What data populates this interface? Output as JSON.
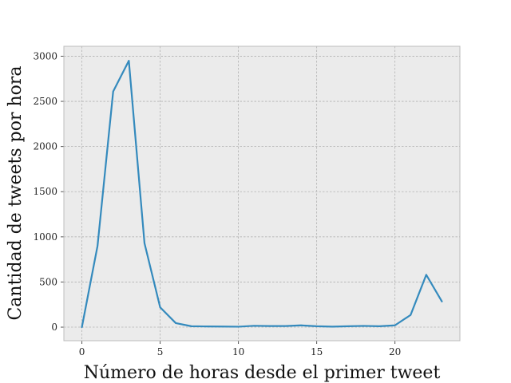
{
  "chart_data": {
    "type": "line",
    "title": "",
    "xlabel": "Número de horas desde el primer tweet",
    "ylabel": "Cantidad de tweets por hora",
    "xlim": [
      -1.15,
      24.15
    ],
    "ylim": [
      -150,
      3110
    ],
    "x_ticks": [
      0,
      5,
      10,
      15,
      20
    ],
    "y_ticks": [
      0,
      500,
      1000,
      1500,
      2000,
      2500,
      3000
    ],
    "x_tick_labels": [
      "0",
      "5",
      "10",
      "15",
      "20"
    ],
    "y_tick_labels": [
      "0",
      "500",
      "1000",
      "1500",
      "2000",
      "2500",
      "3000"
    ],
    "grid": true,
    "legend": "none",
    "colors": {
      "background": "#ebebeb",
      "grid": "#b2b2b2",
      "line": "#348abd",
      "frame": "#bcbcbc"
    },
    "series": [
      {
        "x": [
          0,
          1,
          2,
          3,
          4,
          5,
          6,
          7,
          8,
          9,
          10,
          11,
          12,
          13,
          14,
          15,
          16,
          17,
          18,
          19,
          20,
          21,
          22,
          23
        ],
        "values": [
          0,
          900,
          2610,
          2950,
          930,
          220,
          45,
          10,
          8,
          7,
          5,
          15,
          12,
          12,
          20,
          10,
          6,
          10,
          14,
          10,
          20,
          135,
          580,
          285
        ]
      }
    ]
  }
}
